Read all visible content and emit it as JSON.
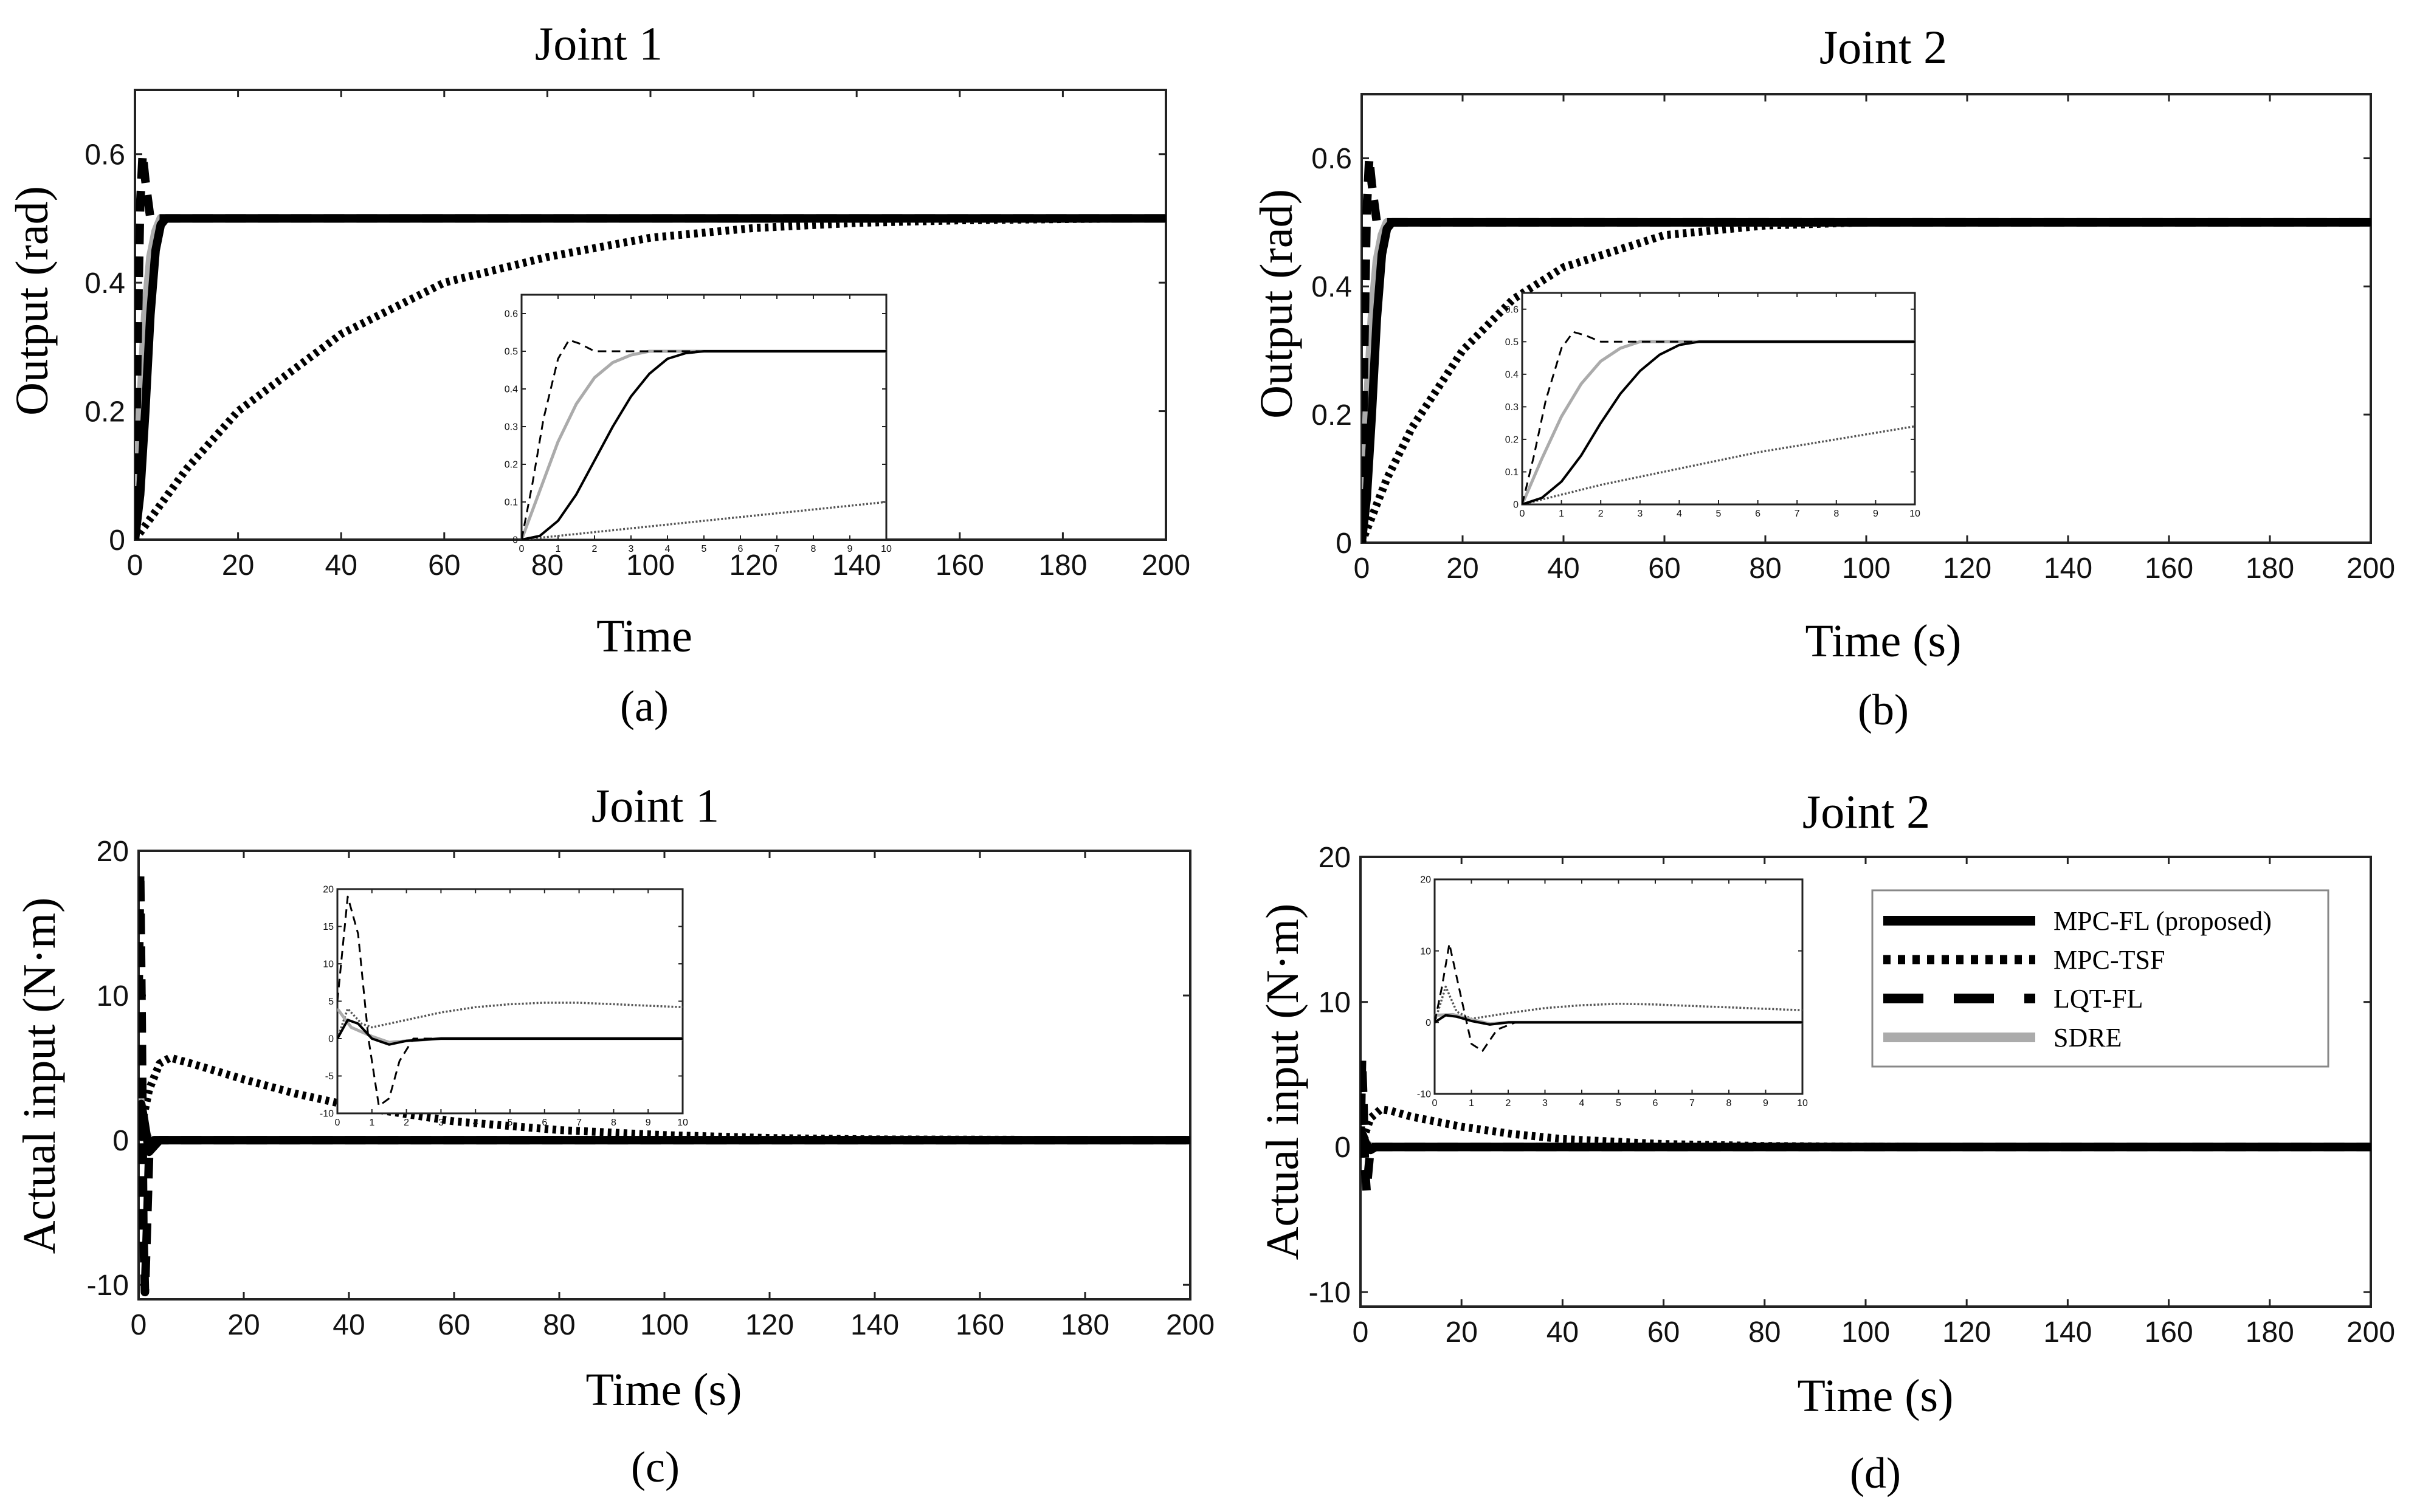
{
  "figure": {
    "colors": {
      "mpc_fl": "#000000",
      "mpc_tsf": "#000000",
      "lqt_fl": "#000000",
      "sdre": "#ababab",
      "frame": "#222222"
    },
    "legend": {
      "entries": [
        "MPC-FL (proposed)",
        "MPC-TSF",
        "LQT-FL",
        "SDRE"
      ]
    }
  },
  "chart_data": [
    {
      "id": "a",
      "type": "line",
      "title": "Joint 1",
      "panel_label": "(a)",
      "xlabel": "Time",
      "ylabel": "Output (rad)",
      "xlim": [
        0,
        200
      ],
      "ylim": [
        0,
        0.7
      ],
      "xticks": [
        0,
        20,
        40,
        60,
        80,
        100,
        120,
        140,
        160,
        180,
        200
      ],
      "yticks": [
        0,
        0.2,
        0.4,
        0.6
      ],
      "ytick_labels": [
        "0",
        "0.2",
        "0.4",
        "0.6"
      ],
      "series": [
        {
          "name": "MPC-FL (proposed)",
          "style": "solid",
          "x": [
            0,
            1,
            2,
            3,
            4,
            5,
            6,
            8,
            200
          ],
          "y": [
            0,
            0.07,
            0.2,
            0.35,
            0.45,
            0.49,
            0.5,
            0.5,
            0.5
          ]
        },
        {
          "name": "MPC-TSF",
          "style": "dotted",
          "x": [
            0,
            10,
            20,
            40,
            60,
            80,
            100,
            120,
            140,
            160,
            180,
            200
          ],
          "y": [
            0,
            0.11,
            0.2,
            0.32,
            0.4,
            0.44,
            0.47,
            0.485,
            0.493,
            0.497,
            0.499,
            0.5
          ]
        },
        {
          "name": "LQT-FL",
          "style": "dashed",
          "x": [
            0,
            0.5,
            1,
            1.5,
            2,
            3,
            5,
            200
          ],
          "y": [
            0,
            0.3,
            0.52,
            0.6,
            0.56,
            0.5,
            0.5,
            0.5
          ]
        },
        {
          "name": "SDRE",
          "style": "gray",
          "x": [
            0,
            1,
            2,
            3,
            4,
            5,
            200
          ],
          "y": [
            0,
            0.2,
            0.35,
            0.44,
            0.48,
            0.5,
            0.5
          ]
        }
      ],
      "inset": {
        "xlim": [
          0,
          10
        ],
        "ylim": [
          0,
          0.65
        ],
        "xticks": [
          0,
          1,
          2,
          3,
          4,
          5,
          6,
          7,
          8,
          9,
          10
        ],
        "yticks": [
          0,
          0.1,
          0.2,
          0.3,
          0.4,
          0.5,
          0.6
        ],
        "ytick_labels": [
          "0",
          "0.1",
          "0.2",
          "0.3",
          "0.4",
          "0.5",
          "0.6"
        ],
        "series": [
          {
            "name": "MPC-FL (proposed)",
            "style": "solid",
            "x": [
              0,
              0.5,
              1,
              1.5,
              2,
              2.5,
              3,
              3.5,
              4,
              4.5,
              5,
              10
            ],
            "y": [
              0,
              0.01,
              0.05,
              0.12,
              0.21,
              0.3,
              0.38,
              0.44,
              0.48,
              0.495,
              0.5,
              0.5
            ]
          },
          {
            "name": "MPC-TSF",
            "style": "dotted",
            "x": [
              0,
              2,
              4,
              6,
              8,
              10
            ],
            "y": [
              0,
              0.02,
              0.04,
              0.06,
              0.08,
              0.1
            ]
          },
          {
            "name": "LQT-FL",
            "style": "dashed",
            "x": [
              0,
              0.3,
              0.6,
              1,
              1.3,
              1.6,
              2,
              2.5,
              3,
              10
            ],
            "y": [
              0,
              0.15,
              0.32,
              0.48,
              0.53,
              0.52,
              0.5,
              0.5,
              0.5,
              0.5
            ]
          },
          {
            "name": "SDRE",
            "style": "gray",
            "x": [
              0,
              0.5,
              1,
              1.5,
              2,
              2.5,
              3,
              3.5,
              4,
              10
            ],
            "y": [
              0,
              0.13,
              0.26,
              0.36,
              0.43,
              0.47,
              0.49,
              0.5,
              0.5,
              0.5
            ]
          }
        ]
      }
    },
    {
      "id": "b",
      "type": "line",
      "title": "Joint 2",
      "panel_label": "(b)",
      "xlabel": "Time (s)",
      "ylabel": "Output (rad)",
      "xlim": [
        0,
        200
      ],
      "ylim": [
        0,
        0.7
      ],
      "xticks": [
        0,
        20,
        40,
        60,
        80,
        100,
        120,
        140,
        160,
        180,
        200
      ],
      "yticks": [
        0,
        0.2,
        0.4,
        0.6
      ],
      "ytick_labels": [
        "0",
        "0.2",
        "0.4",
        "0.6"
      ],
      "series": [
        {
          "name": "MPC-FL (proposed)",
          "style": "solid",
          "x": [
            0,
            1,
            2,
            3,
            4,
            5,
            6,
            8,
            200
          ],
          "y": [
            0,
            0.07,
            0.2,
            0.35,
            0.45,
            0.49,
            0.5,
            0.5,
            0.5
          ]
        },
        {
          "name": "MPC-TSF",
          "style": "dotted",
          "x": [
            0,
            5,
            10,
            20,
            30,
            40,
            60,
            80,
            100,
            120,
            140,
            200
          ],
          "y": [
            0,
            0.1,
            0.18,
            0.3,
            0.38,
            0.43,
            0.48,
            0.495,
            0.5,
            0.5,
            0.5,
            0.5
          ]
        },
        {
          "name": "LQT-FL",
          "style": "dashed",
          "x": [
            0,
            0.5,
            1,
            1.5,
            2,
            3,
            5,
            200
          ],
          "y": [
            0,
            0.3,
            0.52,
            0.6,
            0.56,
            0.5,
            0.5,
            0.5
          ]
        },
        {
          "name": "SDRE",
          "style": "gray",
          "x": [
            0,
            1,
            2,
            3,
            4,
            5,
            200
          ],
          "y": [
            0,
            0.2,
            0.35,
            0.44,
            0.48,
            0.5,
            0.5
          ]
        }
      ],
      "inset": {
        "xlim": [
          0,
          10
        ],
        "ylim": [
          0,
          0.65
        ],
        "xticks": [
          0,
          1,
          2,
          3,
          4,
          5,
          6,
          7,
          8,
          9,
          10
        ],
        "yticks": [
          0,
          0.1,
          0.2,
          0.3,
          0.4,
          0.5,
          0.6
        ],
        "ytick_labels": [
          "0",
          "0.1",
          "0.2",
          "0.3",
          "0.4",
          "0.5",
          "0.6"
        ],
        "series": [
          {
            "name": "MPC-FL (proposed)",
            "style": "solid",
            "x": [
              0,
              0.5,
              1,
              1.5,
              2,
              2.5,
              3,
              3.5,
              4,
              4.5,
              5,
              10
            ],
            "y": [
              0,
              0.02,
              0.07,
              0.15,
              0.25,
              0.34,
              0.41,
              0.46,
              0.49,
              0.5,
              0.5,
              0.5
            ]
          },
          {
            "name": "MPC-TSF",
            "style": "dotted",
            "x": [
              0,
              2,
              4,
              6,
              8,
              10
            ],
            "y": [
              0,
              0.06,
              0.11,
              0.16,
              0.2,
              0.24
            ]
          },
          {
            "name": "LQT-FL",
            "style": "dashed",
            "x": [
              0,
              0.3,
              0.6,
              1,
              1.3,
              1.6,
              2,
              2.5,
              3,
              10
            ],
            "y": [
              0,
              0.15,
              0.32,
              0.48,
              0.53,
              0.52,
              0.5,
              0.5,
              0.5,
              0.5
            ]
          },
          {
            "name": "SDRE",
            "style": "gray",
            "x": [
              0,
              0.5,
              1,
              1.5,
              2,
              2.5,
              3,
              3.5,
              4,
              10
            ],
            "y": [
              0,
              0.14,
              0.27,
              0.37,
              0.44,
              0.48,
              0.5,
              0.5,
              0.5,
              0.5
            ]
          }
        ]
      }
    },
    {
      "id": "c",
      "type": "line",
      "title": "Joint 1",
      "panel_label": "(c)",
      "xlabel": "Time (s)",
      "ylabel": "Actual input (N·m)",
      "xlim": [
        0,
        200
      ],
      "ylim": [
        -11,
        20
      ],
      "xticks": [
        0,
        20,
        40,
        60,
        80,
        100,
        120,
        140,
        160,
        180,
        200
      ],
      "yticks": [
        -10,
        0,
        10,
        20
      ],
      "ytick_labels": [
        "-10",
        "0",
        "10",
        "20"
      ],
      "series": [
        {
          "name": "MPC-FL (proposed)",
          "style": "solid",
          "x": [
            0,
            0.5,
            1,
            2,
            3,
            4,
            6,
            200
          ],
          "y": [
            0,
            2.5,
            1.5,
            -0.8,
            -0.4,
            0,
            0,
            0
          ]
        },
        {
          "name": "MPC-TSF",
          "style": "dotted",
          "x": [
            0,
            2,
            4,
            6,
            10,
            20,
            30,
            40,
            60,
            80,
            100,
            120,
            140,
            200
          ],
          "y": [
            0,
            3.5,
            5.3,
            5.7,
            5.3,
            4.2,
            3.2,
            2.4,
            1.3,
            0.7,
            0.35,
            0.15,
            0.05,
            0
          ]
        },
        {
          "name": "LQT-FL",
          "style": "dashed",
          "x": [
            0,
            0.3,
            0.6,
            0.9,
            1.2,
            1.6,
            2,
            3,
            200
          ],
          "y": [
            10,
            18.5,
            8,
            -6,
            -10.5,
            -6,
            -1,
            0,
            0
          ]
        },
        {
          "name": "SDRE",
          "style": "gray",
          "x": [
            0,
            0.5,
            1,
            2,
            3,
            200
          ],
          "y": [
            4,
            2,
            0.8,
            0,
            0,
            0
          ]
        }
      ],
      "inset": {
        "xlim": [
          0,
          10
        ],
        "ylim": [
          -10,
          20
        ],
        "xticks": [
          0,
          1,
          2,
          3,
          4,
          5,
          6,
          7,
          8,
          9,
          10
        ],
        "yticks": [
          -10,
          -5,
          0,
          5,
          10,
          15,
          20
        ],
        "ytick_labels": [
          "-10",
          "-5",
          "0",
          "5",
          "10",
          "15",
          "20"
        ],
        "series": [
          {
            "name": "MPC-FL (proposed)",
            "style": "solid",
            "x": [
              0,
              0.3,
              0.6,
              1,
              1.5,
              2,
              3,
              10
            ],
            "y": [
              0,
              2.5,
              2,
              0,
              -0.8,
              -0.3,
              0,
              0
            ]
          },
          {
            "name": "MPC-TSF",
            "style": "dotted",
            "x": [
              0,
              0.3,
              0.7,
              1,
              2,
              3,
              4,
              5,
              6,
              7,
              8,
              9,
              10
            ],
            "y": [
              0,
              4,
              2,
              1.5,
              2.5,
              3.5,
              4.2,
              4.6,
              4.8,
              4.8,
              4.6,
              4.4,
              4.2
            ]
          },
          {
            "name": "LQT-FL",
            "style": "dashed",
            "x": [
              0,
              0.3,
              0.6,
              0.9,
              1.2,
              1.5,
              1.8,
              2.2,
              3,
              10
            ],
            "y": [
              5,
              19,
              14,
              0,
              -9,
              -8,
              -3,
              0,
              0,
              0
            ]
          },
          {
            "name": "SDRE",
            "style": "gray",
            "x": [
              0,
              0.4,
              1,
              1.5,
              2,
              3,
              10
            ],
            "y": [
              4,
              1.5,
              0.3,
              -0.5,
              -0.3,
              0,
              0
            ]
          }
        ]
      }
    },
    {
      "id": "d",
      "type": "line",
      "title": "Joint 2",
      "panel_label": "(d)",
      "xlabel": "Time (s)",
      "ylabel": "Actual input (N·m)",
      "xlim": [
        0,
        200
      ],
      "ylim": [
        -11,
        20
      ],
      "xticks": [
        0,
        20,
        40,
        60,
        80,
        100,
        120,
        140,
        160,
        180,
        200
      ],
      "yticks": [
        -10,
        0,
        10,
        20
      ],
      "ytick_labels": [
        "-10",
        "0",
        "10",
        "20"
      ],
      "series": [
        {
          "name": "MPC-FL (proposed)",
          "style": "solid",
          "x": [
            0,
            0.5,
            1,
            2,
            3,
            4,
            200
          ],
          "y": [
            0,
            0.8,
            0.3,
            -0.2,
            0,
            0,
            0
          ]
        },
        {
          "name": "MPC-TSF",
          "style": "dotted",
          "x": [
            0,
            2,
            4,
            6,
            10,
            20,
            30,
            40,
            60,
            80,
            100,
            200
          ],
          "y": [
            0,
            2,
            2.6,
            2.5,
            2.1,
            1.4,
            0.9,
            0.55,
            0.2,
            0.07,
            0.02,
            0
          ]
        },
        {
          "name": "LQT-FL",
          "style": "dashed",
          "x": [
            0,
            0.3,
            0.6,
            0.9,
            1.2,
            1.6,
            2,
            3,
            200
          ],
          "y": [
            0,
            6,
            3,
            -1.5,
            -3,
            -1.5,
            0,
            0,
            0
          ]
        },
        {
          "name": "SDRE",
          "style": "gray",
          "x": [
            0,
            0.5,
            1,
            2,
            200
          ],
          "y": [
            1,
            0.8,
            0.3,
            0,
            0
          ]
        }
      ],
      "inset": {
        "xlim": [
          0,
          10
        ],
        "ylim": [
          -10,
          20
        ],
        "xticks": [
          0,
          1,
          2,
          3,
          4,
          5,
          6,
          7,
          8,
          9,
          10
        ],
        "yticks": [
          -10,
          0,
          10,
          20
        ],
        "ytick_labels": [
          "-10",
          "0",
          "10",
          "20"
        ],
        "series": [
          {
            "name": "MPC-FL (proposed)",
            "style": "solid",
            "x": [
              0,
              0.3,
              0.6,
              1,
              1.5,
              2,
              10
            ],
            "y": [
              0,
              1,
              0.8,
              0.2,
              -0.3,
              0,
              0
            ]
          },
          {
            "name": "MPC-TSF",
            "style": "dotted",
            "x": [
              0,
              0.3,
              0.6,
              1,
              2,
              3,
              4,
              5,
              6,
              7,
              8,
              9,
              10
            ],
            "y": [
              0,
              5,
              1.5,
              0.5,
              1.3,
              2,
              2.4,
              2.6,
              2.5,
              2.3,
              2.1,
              1.9,
              1.7
            ]
          },
          {
            "name": "LQT-FL",
            "style": "dashed",
            "x": [
              0,
              0.2,
              0.4,
              0.7,
              1,
              1.3,
              1.7,
              2.2,
              10
            ],
            "y": [
              0,
              5,
              11,
              4,
              -3,
              -4,
              -1,
              0,
              0
            ]
          },
          {
            "name": "SDRE",
            "style": "gray",
            "x": [
              0,
              0.5,
              1,
              1.5,
              2,
              10
            ],
            "y": [
              1,
              1.1,
              0.4,
              -0.2,
              0,
              0
            ]
          }
        ]
      }
    }
  ]
}
